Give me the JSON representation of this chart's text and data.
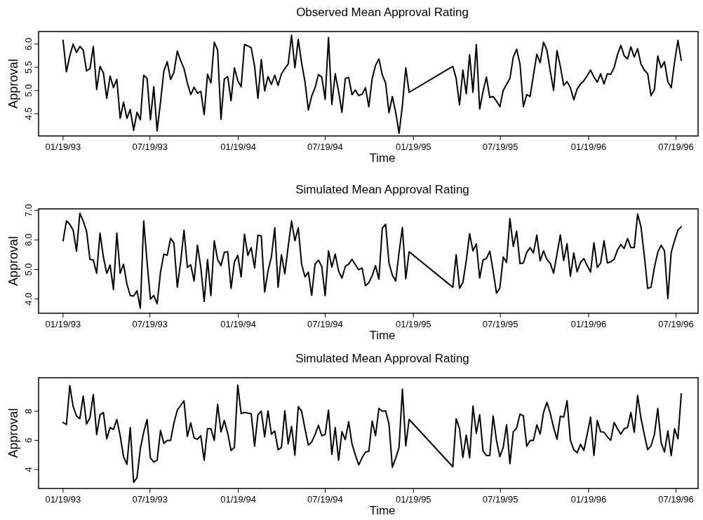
{
  "chart_data": [
    {
      "type": "line",
      "title": "Observed Mean Approval Rating",
      "xlabel": "Time",
      "ylabel": "Approval",
      "x": [
        "1993-01-19",
        "1993-01-26",
        "1993-02-02",
        "1993-02-09",
        "1993-02-16",
        "1993-02-23",
        "1993-03-02",
        "1993-03-09",
        "1993-03-16",
        "1993-03-23",
        "1993-03-30",
        "1993-04-06",
        "1993-04-13",
        "1993-04-20",
        "1993-04-27",
        "1993-05-04",
        "1993-05-11",
        "1993-05-18",
        "1993-05-25",
        "1993-06-01",
        "1993-06-08",
        "1993-06-15",
        "1993-06-22",
        "1993-06-29",
        "1993-07-06",
        "1993-07-13",
        "1993-07-20",
        "1993-07-27",
        "1993-08-03",
        "1993-08-10",
        "1993-08-17",
        "1993-08-24",
        "1993-08-31",
        "1993-09-07",
        "1993-09-14",
        "1993-09-21",
        "1993-09-28",
        "1993-10-05",
        "1993-10-12",
        "1993-10-19",
        "1993-10-26",
        "1993-11-02",
        "1993-11-09",
        "1993-11-16",
        "1993-11-23",
        "1993-11-30",
        "1993-12-07",
        "1993-12-14",
        "1993-12-21",
        "1993-12-28",
        "1994-01-04",
        "1994-01-11",
        "1994-01-18",
        "1994-01-25",
        "1994-02-01",
        "1994-02-08",
        "1994-02-15",
        "1994-02-22",
        "1994-03-01",
        "1994-03-08",
        "1994-03-15",
        "1994-03-22",
        "1994-03-29",
        "1994-04-05",
        "1994-04-12",
        "1994-04-19",
        "1994-04-26",
        "1994-05-03",
        "1994-05-10",
        "1994-05-17",
        "1994-05-24",
        "1994-05-31",
        "1994-06-07",
        "1994-06-14",
        "1994-06-21",
        "1994-06-28",
        "1994-07-05",
        "1994-07-12",
        "1994-07-19",
        "1994-07-26",
        "1994-08-02",
        "1994-08-09",
        "1994-08-16",
        "1994-08-23",
        "1994-08-30",
        "1994-09-06",
        "1994-09-13",
        "1994-09-20",
        "1994-09-27",
        "1994-10-04",
        "1994-10-11",
        "1994-10-18",
        "1994-10-25",
        "1994-11-01",
        "1994-11-08",
        "1994-11-15",
        "1994-11-22",
        "1994-11-29",
        "1994-12-06",
        "1994-12-13",
        "1994-12-20",
        "1994-12-27",
        "1995-01-03",
        "1995-01-10",
        "1995-04-11",
        "1995-04-18",
        "1995-04-25",
        "1995-05-02",
        "1995-05-09",
        "1995-05-16",
        "1995-05-23",
        "1995-05-30",
        "1995-06-06",
        "1995-06-13",
        "1995-06-20",
        "1995-06-27",
        "1995-07-04",
        "1995-07-11",
        "1995-07-18",
        "1995-07-25",
        "1995-08-01",
        "1995-08-08",
        "1995-08-15",
        "1995-08-22",
        "1995-08-29",
        "1995-09-05",
        "1995-09-12",
        "1995-09-19",
        "1995-09-26",
        "1995-10-03",
        "1995-10-10",
        "1995-10-17",
        "1995-10-24",
        "1995-10-31",
        "1995-11-07",
        "1995-11-14",
        "1995-11-21",
        "1995-11-28",
        "1995-12-05",
        "1995-12-12",
        "1995-12-19",
        "1995-12-26",
        "1996-01-02",
        "1996-01-09",
        "1996-01-16",
        "1996-01-23",
        "1996-01-30",
        "1996-02-06",
        "1996-02-13",
        "1996-02-20",
        "1996-02-27",
        "1996-03-05",
        "1996-03-12",
        "1996-03-19",
        "1996-03-26",
        "1996-04-02",
        "1996-04-09",
        "1996-04-16",
        "1996-04-23",
        "1996-04-30",
        "1996-05-07",
        "1996-05-14",
        "1996-05-21",
        "1996-05-28",
        "1996-06-04",
        "1996-06-11",
        "1996-06-18",
        "1996-06-25",
        "1996-07-02",
        "1996-07-09",
        "1996-07-16",
        "1996-07-23",
        "1996-07-30"
      ],
      "series": [
        {
          "color": "#000000",
          "values": [
            6.08,
            5.4,
            5.75,
            6.0,
            5.82,
            5.95,
            5.87,
            5.42,
            5.47,
            5.95,
            5.02,
            5.52,
            5.38,
            4.83,
            5.31,
            5.06,
            5.24,
            4.4,
            4.75,
            4.4,
            4.59,
            4.14,
            4.53,
            4.37,
            5.33,
            5.26,
            4.37,
            5.08,
            4.13,
            4.75,
            5.42,
            5.62,
            5.24,
            5.39,
            5.85,
            5.64,
            5.47,
            5.16,
            4.91,
            5.07,
            4.94,
            4.98,
            4.48,
            5.35,
            5.16,
            6.04,
            5.87,
            4.38,
            5.25,
            5.3,
            4.78,
            5.49,
            5.21,
            5.08,
            5.99,
            5.96,
            5.92,
            5.52,
            4.83,
            5.67,
            4.99,
            5.3,
            5.13,
            5.33,
            5.11,
            5.36,
            5.47,
            5.57,
            6.19,
            5.49,
            6.1,
            5.59,
            5.19,
            4.58,
            4.88,
            5.06,
            5.34,
            5.29,
            4.81,
            6.14,
            4.7,
            5.36,
            4.98,
            4.53,
            5.26,
            5.28,
            4.91,
            5.01,
            4.89,
            4.92,
            5.06,
            4.65,
            5.26,
            5.54,
            5.68,
            5.34,
            5.16,
            4.52,
            4.87,
            4.53,
            4.08,
            4.68,
            5.49,
            4.96,
            5.52,
            5.26,
            4.69,
            5.44,
            4.93,
            5.77,
            4.96,
            5.99,
            4.6,
            4.98,
            5.29,
            4.85,
            4.87,
            4.77,
            4.65,
            5.0,
            5.13,
            5.26,
            5.72,
            5.89,
            5.57,
            4.65,
            4.91,
            4.87,
            5.33,
            5.78,
            5.6,
            6.04,
            5.87,
            5.42,
            5.0,
            5.86,
            5.52,
            5.11,
            5.19,
            5.06,
            4.8,
            5.03,
            5.14,
            5.21,
            5.32,
            5.44,
            5.29,
            5.18,
            5.36,
            5.14,
            5.36,
            5.35,
            5.49,
            5.77,
            5.97,
            5.75,
            5.68,
            5.94,
            5.72,
            5.9,
            5.57,
            5.44,
            5.36,
            4.89,
            5.02,
            5.74,
            5.49,
            5.62,
            5.19,
            5.06,
            5.62,
            6.08,
            5.65
          ]
        }
      ],
      "xlim": [
        "1992-11-29",
        "1996-09-03"
      ],
      "xticks": [
        {
          "value": "1993-01-19",
          "label": "01/19/93"
        },
        {
          "value": "1993-07-19",
          "label": "07/19/93"
        },
        {
          "value": "1994-01-19",
          "label": "01/19/94"
        },
        {
          "value": "1994-07-19",
          "label": "07/19/94"
        },
        {
          "value": "1995-01-19",
          "label": "01/19/95"
        },
        {
          "value": "1995-07-19",
          "label": "07/19/95"
        },
        {
          "value": "1996-01-19",
          "label": "01/19/96"
        },
        {
          "value": "1996-07-19",
          "label": "07/19/96"
        }
      ],
      "ylim": [
        4.02,
        6.27
      ],
      "yticks": [
        4.5,
        {
          "value": 5,
          "label": "5.0"
        },
        5.5,
        {
          "value": 6,
          "label": "6.0"
        }
      ]
    },
    {
      "type": "line",
      "title": "Simulated Mean Approval Rating",
      "xlabel": "Time",
      "ylabel": "Approval",
      "x": [
        "1993-01-19",
        "1993-01-26",
        "1993-02-02",
        "1993-02-09",
        "1993-02-16",
        "1993-02-23",
        "1993-03-02",
        "1993-03-09",
        "1993-03-16",
        "1993-03-23",
        "1993-03-30",
        "1993-04-06",
        "1993-04-13",
        "1993-04-20",
        "1993-04-27",
        "1993-05-04",
        "1993-05-11",
        "1993-05-18",
        "1993-05-25",
        "1993-06-01",
        "1993-06-08",
        "1993-06-15",
        "1993-06-22",
        "1993-06-29",
        "1993-07-06",
        "1993-07-13",
        "1993-07-20",
        "1993-07-27",
        "1993-08-03",
        "1993-08-10",
        "1993-08-17",
        "1993-08-24",
        "1993-08-31",
        "1993-09-07",
        "1993-09-14",
        "1993-09-21",
        "1993-09-28",
        "1993-10-05",
        "1993-10-12",
        "1993-10-19",
        "1993-10-26",
        "1993-11-02",
        "1993-11-09",
        "1993-11-16",
        "1993-11-23",
        "1993-11-30",
        "1993-12-07",
        "1993-12-14",
        "1993-12-21",
        "1993-12-28",
        "1994-01-04",
        "1994-01-11",
        "1994-01-18",
        "1994-01-25",
        "1994-02-01",
        "1994-02-08",
        "1994-02-15",
        "1994-02-22",
        "1994-03-01",
        "1994-03-08",
        "1994-03-15",
        "1994-03-22",
        "1994-03-29",
        "1994-04-05",
        "1994-04-12",
        "1994-04-19",
        "1994-04-26",
        "1994-05-03",
        "1994-05-10",
        "1994-05-17",
        "1994-05-24",
        "1994-05-31",
        "1994-06-07",
        "1994-06-14",
        "1994-06-21",
        "1994-06-28",
        "1994-07-05",
        "1994-07-12",
        "1994-07-19",
        "1994-07-26",
        "1994-08-02",
        "1994-08-09",
        "1994-08-16",
        "1994-08-23",
        "1994-08-30",
        "1994-09-06",
        "1994-09-13",
        "1994-09-20",
        "1994-09-27",
        "1994-10-04",
        "1994-10-11",
        "1994-10-18",
        "1994-10-25",
        "1994-11-01",
        "1994-11-08",
        "1994-11-15",
        "1994-11-22",
        "1994-11-29",
        "1994-12-06",
        "1994-12-13",
        "1994-12-20",
        "1994-12-27",
        "1995-01-03",
        "1995-01-10",
        "1995-04-11",
        "1995-04-18",
        "1995-04-25",
        "1995-05-02",
        "1995-05-09",
        "1995-05-16",
        "1995-05-23",
        "1995-05-30",
        "1995-06-06",
        "1995-06-13",
        "1995-06-20",
        "1995-06-27",
        "1995-07-04",
        "1995-07-11",
        "1995-07-18",
        "1995-07-25",
        "1995-08-01",
        "1995-08-08",
        "1995-08-15",
        "1995-08-22",
        "1995-08-29",
        "1995-09-05",
        "1995-09-12",
        "1995-09-19",
        "1995-09-26",
        "1995-10-03",
        "1995-10-10",
        "1995-10-17",
        "1995-10-24",
        "1995-10-31",
        "1995-11-07",
        "1995-11-14",
        "1995-11-21",
        "1995-11-28",
        "1995-12-05",
        "1995-12-12",
        "1995-12-19",
        "1995-12-26",
        "1996-01-02",
        "1996-01-09",
        "1996-01-16",
        "1996-01-23",
        "1996-01-30",
        "1996-02-06",
        "1996-02-13",
        "1996-02-20",
        "1996-02-27",
        "1996-03-05",
        "1996-03-12",
        "1996-03-19",
        "1996-03-26",
        "1996-04-02",
        "1996-04-09",
        "1996-04-16",
        "1996-04-23",
        "1996-04-30",
        "1996-05-07",
        "1996-05-14",
        "1996-05-21",
        "1996-05-28",
        "1996-06-04",
        "1996-06-11",
        "1996-06-18",
        "1996-06-25",
        "1996-07-02",
        "1996-07-09",
        "1996-07-16",
        "1996-07-23",
        "1996-07-30"
      ],
      "series": [
        {
          "color": "#000000",
          "values": [
            5.97,
            6.64,
            6.53,
            6.33,
            5.62,
            6.9,
            6.64,
            6.29,
            5.34,
            5.32,
            4.87,
            6.23,
            5.42,
            4.87,
            5.15,
            4.32,
            6.23,
            4.87,
            5.18,
            4.51,
            4.12,
            4.1,
            4.28,
            3.69,
            6.64,
            5.26,
            4.0,
            4.12,
            3.84,
            4.91,
            5.52,
            5.48,
            6.05,
            5.9,
            4.4,
            5.26,
            6.33,
            5.07,
            5.16,
            4.61,
            5.82,
            5.07,
            3.92,
            5.34,
            4.12,
            5.97,
            5.34,
            5.13,
            5.58,
            5.6,
            4.36,
            5.26,
            5.48,
            4.75,
            6.19,
            5.48,
            5.74,
            5.05,
            6.16,
            6.13,
            4.24,
            4.95,
            5.42,
            6.41,
            4.4,
            5.5,
            4.85,
            5.78,
            6.64,
            5.97,
            6.41,
            5.18,
            4.75,
            4.91,
            4.13,
            5.18,
            5.32,
            5.1,
            4.12,
            5.63,
            5.08,
            5.52,
            4.95,
            4.71,
            5.1,
            5.18,
            5.34,
            5.16,
            4.99,
            5.05,
            4.45,
            4.55,
            4.79,
            5.13,
            4.67,
            6.39,
            6.53,
            5.22,
            4.81,
            4.61,
            5.58,
            6.42,
            4.69,
            5.6,
            4.4,
            5.5,
            4.37,
            4.55,
            5.3,
            6.21,
            5.63,
            5.87,
            4.71,
            5.32,
            5.37,
            5.62,
            4.95,
            4.2,
            4.37,
            5.42,
            5.24,
            6.72,
            5.78,
            6.29,
            5.2,
            5.22,
            5.58,
            5.74,
            5.56,
            6.16,
            5.29,
            5.63,
            5.34,
            5.21,
            4.87,
            5.52,
            6.17,
            5.3,
            5.87,
            4.77,
            5.56,
            4.92,
            5.24,
            5.37,
            5.13,
            4.91,
            5.9,
            5.07,
            5.22,
            5.97,
            5.22,
            5.26,
            5.34,
            5.66,
            5.84,
            5.71,
            6.05,
            5.74,
            5.74,
            6.87,
            6.45,
            5.46,
            4.36,
            4.4,
            5.07,
            5.58,
            5.82,
            5.63,
            4.02,
            5.58,
            5.97,
            6.33,
            6.45
          ]
        }
      ],
      "xlim": [
        "1992-11-29",
        "1996-09-03"
      ],
      "xticks": [
        {
          "value": "1993-01-19",
          "label": "01/19/93"
        },
        {
          "value": "1993-07-19",
          "label": "07/19/93"
        },
        {
          "value": "1994-01-19",
          "label": "01/19/94"
        },
        {
          "value": "1994-07-19",
          "label": "07/19/94"
        },
        {
          "value": "1995-01-19",
          "label": "01/19/95"
        },
        {
          "value": "1995-07-19",
          "label": "07/19/95"
        },
        {
          "value": "1996-01-19",
          "label": "01/19/96"
        },
        {
          "value": "1996-07-19",
          "label": "07/19/96"
        }
      ],
      "ylim": [
        3.52,
        7.05
      ],
      "yticks": [
        {
          "value": 4,
          "label": "4.0"
        },
        {
          "value": 5,
          "label": "5.0"
        },
        {
          "value": 6,
          "label": "6.0"
        },
        {
          "value": 7,
          "label": "7.0"
        }
      ]
    },
    {
      "type": "line",
      "title": "Simulated Mean Approval Rating",
      "xlabel": "Time",
      "ylabel": "Approval",
      "x": [
        "1993-01-19",
        "1993-01-26",
        "1993-02-02",
        "1993-02-09",
        "1993-02-16",
        "1993-02-23",
        "1993-03-02",
        "1993-03-09",
        "1993-03-16",
        "1993-03-23",
        "1993-03-30",
        "1993-04-06",
        "1993-04-13",
        "1993-04-20",
        "1993-04-27",
        "1993-05-04",
        "1993-05-11",
        "1993-05-18",
        "1993-05-25",
        "1993-06-01",
        "1993-06-08",
        "1993-06-15",
        "1993-06-22",
        "1993-06-29",
        "1993-07-06",
        "1993-07-13",
        "1993-07-20",
        "1993-07-27",
        "1993-08-03",
        "1993-08-10",
        "1993-08-17",
        "1993-08-24",
        "1993-08-31",
        "1993-09-07",
        "1993-09-14",
        "1993-09-21",
        "1993-09-28",
        "1993-10-05",
        "1993-10-12",
        "1993-10-19",
        "1993-10-26",
        "1993-11-02",
        "1993-11-09",
        "1993-11-16",
        "1993-11-23",
        "1993-11-30",
        "1993-12-07",
        "1993-12-14",
        "1993-12-21",
        "1993-12-28",
        "1994-01-04",
        "1994-01-11",
        "1994-01-18",
        "1994-01-25",
        "1994-02-01",
        "1994-02-08",
        "1994-02-15",
        "1994-02-22",
        "1994-03-01",
        "1994-03-08",
        "1994-03-15",
        "1994-03-22",
        "1994-03-29",
        "1994-04-05",
        "1994-04-12",
        "1994-04-19",
        "1994-04-26",
        "1994-05-03",
        "1994-05-10",
        "1994-05-17",
        "1994-05-24",
        "1994-05-31",
        "1994-06-07",
        "1994-06-14",
        "1994-06-21",
        "1994-06-28",
        "1994-07-05",
        "1994-07-12",
        "1994-07-19",
        "1994-07-26",
        "1994-08-02",
        "1994-08-09",
        "1994-08-16",
        "1994-08-23",
        "1994-08-30",
        "1994-09-06",
        "1994-09-13",
        "1994-09-20",
        "1994-09-27",
        "1994-10-04",
        "1994-10-11",
        "1994-10-18",
        "1994-10-25",
        "1994-11-01",
        "1994-11-08",
        "1994-11-15",
        "1994-11-22",
        "1994-11-29",
        "1994-12-06",
        "1994-12-13",
        "1994-12-20",
        "1994-12-27",
        "1995-01-03",
        "1995-01-10",
        "1995-04-11",
        "1995-04-18",
        "1995-04-25",
        "1995-05-02",
        "1995-05-09",
        "1995-05-16",
        "1995-05-23",
        "1995-05-30",
        "1995-06-06",
        "1995-06-13",
        "1995-06-20",
        "1995-06-27",
        "1995-07-04",
        "1995-07-11",
        "1995-07-18",
        "1995-07-25",
        "1995-08-01",
        "1995-08-08",
        "1995-08-15",
        "1995-08-22",
        "1995-08-29",
        "1995-09-05",
        "1995-09-12",
        "1995-09-19",
        "1995-09-26",
        "1995-10-03",
        "1995-10-10",
        "1995-10-17",
        "1995-10-24",
        "1995-10-31",
        "1995-11-07",
        "1995-11-14",
        "1995-11-21",
        "1995-11-28",
        "1995-12-05",
        "1995-12-12",
        "1995-12-19",
        "1995-12-26",
        "1996-01-02",
        "1996-01-09",
        "1996-01-16",
        "1996-01-23",
        "1996-01-30",
        "1996-02-06",
        "1996-02-13",
        "1996-02-20",
        "1996-02-27",
        "1996-03-05",
        "1996-03-12",
        "1996-03-19",
        "1996-03-26",
        "1996-04-02",
        "1996-04-09",
        "1996-04-16",
        "1996-04-23",
        "1996-04-30",
        "1996-05-07",
        "1996-05-14",
        "1996-05-21",
        "1996-05-28",
        "1996-06-04",
        "1996-06-11",
        "1996-06-18",
        "1996-06-25",
        "1996-07-02",
        "1996-07-09",
        "1996-07-16",
        "1996-07-23",
        "1996-07-30"
      ],
      "series": [
        {
          "color": "#000000",
          "values": [
            7.23,
            7.09,
            9.76,
            8.32,
            7.68,
            7.49,
            9.04,
            7.12,
            7.55,
            9.15,
            6.4,
            7.76,
            7.92,
            6.11,
            6.88,
            6.75,
            7.44,
            6.32,
            4.88,
            4.35,
            6.88,
            3.12,
            3.44,
            5.44,
            6.56,
            7.44,
            4.8,
            4.51,
            4.64,
            6.69,
            5.79,
            6.0,
            6.0,
            7.2,
            8.08,
            8.4,
            8.72,
            6.27,
            7.2,
            6.16,
            6.08,
            6.32,
            4.64,
            6.8,
            6.8,
            6.0,
            8.48,
            6.59,
            7.36,
            6.48,
            5.31,
            5.52,
            9.79,
            7.84,
            7.92,
            7.87,
            7.84,
            5.6,
            7.76,
            8.0,
            6.24,
            8.03,
            6.43,
            6.64,
            5.36,
            5.52,
            8.03,
            5.76,
            6.96,
            4.99,
            8.32,
            8.0,
            6.8,
            5.68,
            5.89,
            6.4,
            7.04,
            6.32,
            6.4,
            8.08,
            5.04,
            6.88,
            4.64,
            6.59,
            6.05,
            7.28,
            5.76,
            4.99,
            4.32,
            4.8,
            5.2,
            5.25,
            7.33,
            6.32,
            8.19,
            8.0,
            8.03,
            7.12,
            4.16,
            4.77,
            5.52,
            9.52,
            5.63,
            7.44,
            4.19,
            7.49,
            6.8,
            4.83,
            6.37,
            4.8,
            8.35,
            6.48,
            7.76,
            5.28,
            4.96,
            4.96,
            7.68,
            6.0,
            4.88,
            5.52,
            7.07,
            4.4,
            6.59,
            6.85,
            7.81,
            7.68,
            5.6,
            6.0,
            6.0,
            7.07,
            6.43,
            7.92,
            8.61,
            7.87,
            6.88,
            6.08,
            7.65,
            7.6,
            8.72,
            6.0,
            5.36,
            5.15,
            5.73,
            5.31,
            6.43,
            7.6,
            4.96,
            7.36,
            6.59,
            6.56,
            6.24,
            6.0,
            7.23,
            6.8,
            6.43,
            6.8,
            6.88,
            7.92,
            6.56,
            9.09,
            7.52,
            6.4,
            5.36,
            5.63,
            6.4,
            8.19,
            5.84,
            5.2,
            6.64,
            4.96,
            6.8,
            6.11,
            9.2
          ]
        }
      ],
      "xlim": [
        "1992-11-29",
        "1996-09-03"
      ],
      "xticks": [
        {
          "value": "1993-01-19",
          "label": "01/19/93"
        },
        {
          "value": "1993-07-19",
          "label": "07/19/93"
        },
        {
          "value": "1994-01-19",
          "label": "01/19/94"
        },
        {
          "value": "1994-07-19",
          "label": "07/19/94"
        },
        {
          "value": "1995-01-19",
          "label": "01/19/95"
        },
        {
          "value": "1995-07-19",
          "label": "07/19/95"
        },
        {
          "value": "1996-01-19",
          "label": "01/19/96"
        },
        {
          "value": "1996-07-19",
          "label": "07/19/96"
        }
      ],
      "ylim": [
        2.7,
        10.3
      ],
      "yticks": [
        4,
        6,
        8
      ]
    }
  ]
}
